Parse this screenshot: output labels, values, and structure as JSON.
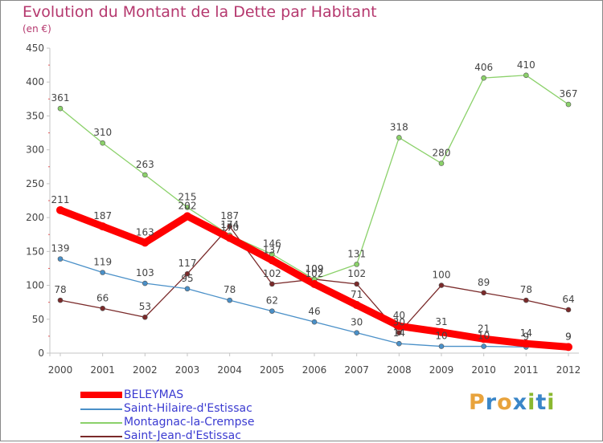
{
  "title": "Evolution du Montant de la Dette par Habitant",
  "unit_label": "(en €)",
  "logo": {
    "text": "Proxiti",
    "colors": [
      "#e8a33c",
      "#3a86c8",
      "#e8a33c",
      "#3a86c8",
      "#8ab830",
      "#3a86c8",
      "#8ab830"
    ]
  },
  "chart_data": {
    "type": "line",
    "x": [
      "2000",
      "2001",
      "2002",
      "2003",
      "2004",
      "2005",
      "2006",
      "2007",
      "2008",
      "2009",
      "2010",
      "2011",
      "2012"
    ],
    "yticks": [
      "0",
      "50",
      "100",
      "150",
      "200",
      "250",
      "300",
      "350",
      "400",
      "450"
    ],
    "ylim": [
      0,
      450
    ],
    "grid": false,
    "legend_position": "bottom-left",
    "series": [
      {
        "name": "BELEYMAS",
        "color": "#ff0000",
        "values": [
          211,
          187,
          163,
          202,
          170,
          137,
          102,
          71,
          40,
          31,
          21,
          14,
          9
        ],
        "labels": [
          "211",
          "187",
          "163",
          "202",
          "170",
          "137",
          "102",
          "71",
          "40",
          "31",
          "21",
          "14",
          "9"
        ]
      },
      {
        "name": "Saint-Hilaire-d'Estissac",
        "color": "#4a90c8",
        "values": [
          139,
          119,
          103,
          95,
          78,
          62,
          46,
          30,
          14,
          10,
          10,
          9,
          9
        ],
        "labels": [
          "139",
          "119",
          "103",
          "95",
          "78",
          "62",
          "46",
          "30",
          "14",
          "10",
          "10",
          "9",
          "9"
        ]
      },
      {
        "name": "Montagnac-la-Crempse",
        "color": "#8bd16a",
        "values": [
          361,
          310,
          263,
          215,
          174,
          146,
          109,
          131,
          318,
          280,
          406,
          410,
          367
        ],
        "labels": [
          "361",
          "310",
          "263",
          "215",
          "174",
          "146",
          "109",
          "131",
          "318",
          "280",
          "406",
          "410",
          "367"
        ]
      },
      {
        "name": "Saint-Jean-d'Estissac",
        "color": "#7a2a2a",
        "values": [
          78,
          66,
          53,
          117,
          187,
          102,
          109,
          102,
          30,
          100,
          89,
          78,
          64
        ],
        "labels": [
          "78",
          "66",
          "53",
          "117",
          "187",
          "102",
          "109",
          "102",
          "30",
          "100",
          "89",
          "78",
          "64"
        ]
      }
    ]
  }
}
